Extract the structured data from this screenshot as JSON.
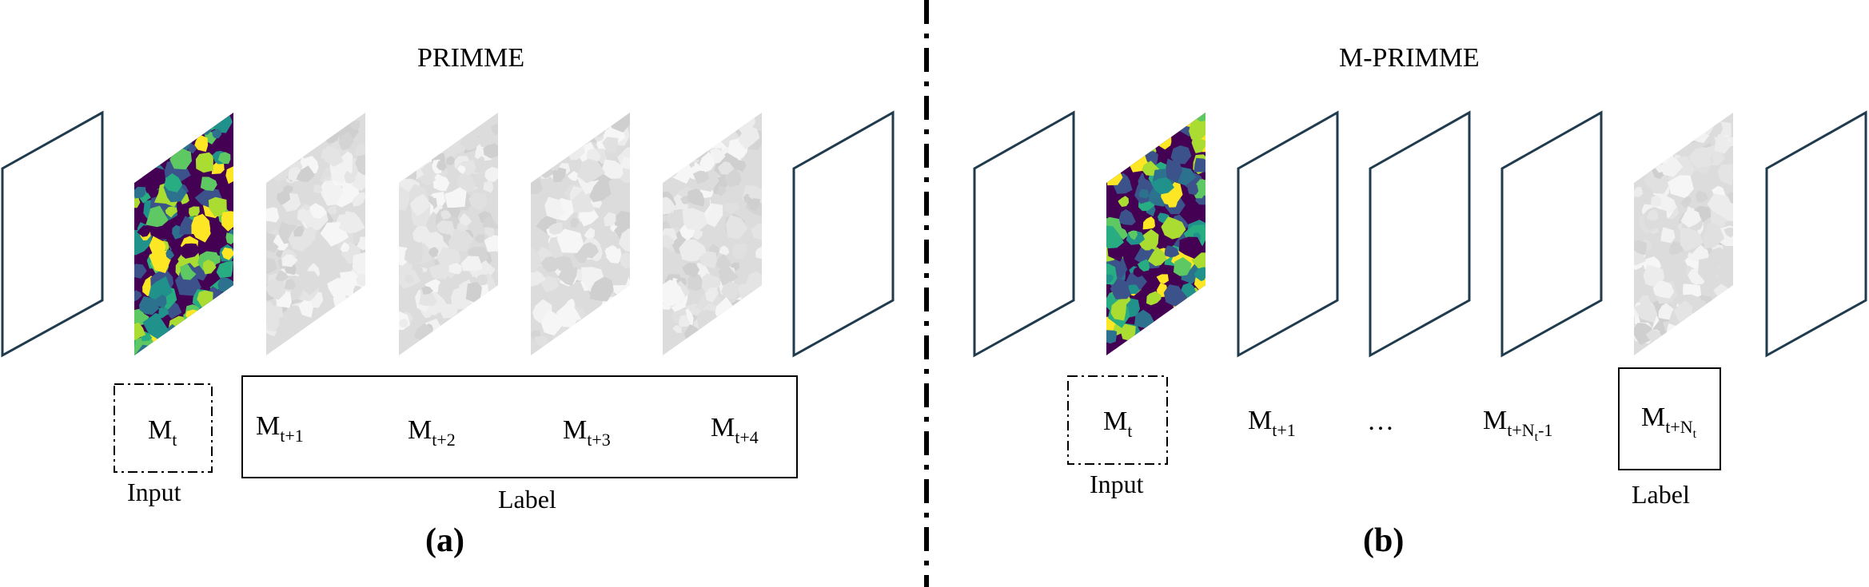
{
  "panel_a": {
    "title": "PRIMME",
    "panel_label": "(a)",
    "input_caption": "Input",
    "label_caption": "Label",
    "frames": [
      {
        "type": "empty",
        "name": "frame-empty"
      },
      {
        "type": "viridis",
        "name": "frame-microstructure-input"
      },
      {
        "type": "gray",
        "name": "frame-microstructure-label"
      },
      {
        "type": "gray",
        "name": "frame-microstructure-label"
      },
      {
        "type": "gray",
        "name": "frame-microstructure-label"
      },
      {
        "type": "gray",
        "name": "frame-microstructure-label"
      },
      {
        "type": "empty",
        "name": "frame-empty"
      }
    ],
    "m_labels": [
      {
        "base": "M",
        "sub": "t"
      },
      {
        "base": "M",
        "sub": "t+1"
      },
      {
        "base": "M",
        "sub": "t+2"
      },
      {
        "base": "M",
        "sub": "t+3"
      },
      {
        "base": "M",
        "sub": "t+4"
      }
    ]
  },
  "panel_b": {
    "title": "M-PRIMME",
    "panel_label": "(b)",
    "input_caption": "Input",
    "label_caption": "Label",
    "ellipsis": "…",
    "frames": [
      {
        "type": "empty",
        "name": "frame-empty"
      },
      {
        "type": "viridis",
        "name": "frame-microstructure-input"
      },
      {
        "type": "empty",
        "name": "frame-empty"
      },
      {
        "type": "empty",
        "name": "frame-empty"
      },
      {
        "type": "empty",
        "name": "frame-empty"
      },
      {
        "type": "gray",
        "name": "frame-microstructure-label"
      },
      {
        "type": "empty",
        "name": "frame-empty"
      }
    ],
    "m_labels": [
      {
        "base": "M",
        "sub": "t"
      },
      {
        "base": "M",
        "sub": "t+1"
      },
      {
        "base": "M",
        "sub_pre": "t+N",
        "sub_sub": "t",
        "sub_post": "-1"
      },
      {
        "base": "M",
        "sub_pre": "t+N",
        "sub_sub": "t",
        "sub_post": ""
      }
    ]
  },
  "colors": {
    "frame_stroke": "#1f3b4d",
    "viridis": [
      "#440154",
      "#3b528b",
      "#21918c",
      "#5ec962",
      "#fde725",
      "#2c728e",
      "#27ad81",
      "#aadc32"
    ],
    "gray": [
      "#dcdcdc",
      "#e4e4e4",
      "#ececec",
      "#d4d4d4",
      "#f2f2f2",
      "#e0e0e0",
      "#cfcfcf",
      "#f6f6f6"
    ]
  }
}
